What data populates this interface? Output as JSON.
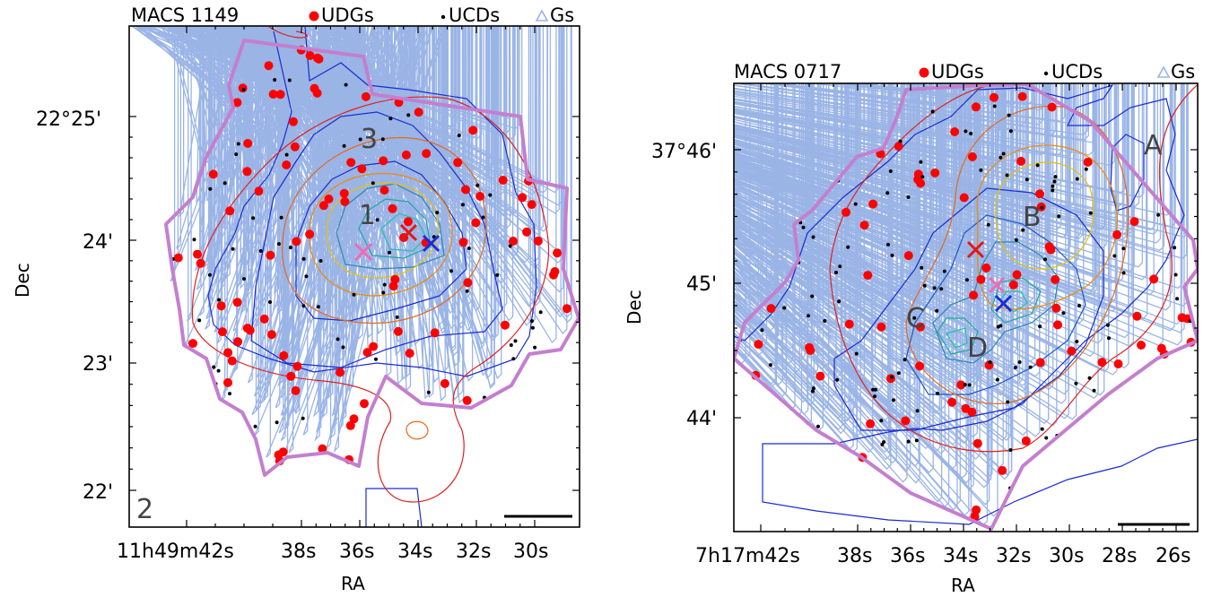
{
  "chart_data": [
    {
      "type": "scatter",
      "title": "MACS 1149",
      "xlabel": "RA",
      "ylabel": "Dec",
      "x_ticks": [
        "11h49m42s",
        "38s",
        "36s",
        "34s",
        "32s",
        "30s"
      ],
      "y_ticks": [
        "22°25'",
        "24'",
        "23'",
        "22'"
      ],
      "legend": [
        "UDGs",
        "UCDs",
        "Gs"
      ],
      "panel_label": "2",
      "region_labels": [
        "1",
        "3"
      ],
      "colors": {
        "udg": "#ff0000",
        "ucd": "#000000",
        "gs": "#9ab4e6",
        "footprint": "#c47fcf"
      }
    },
    {
      "type": "scatter",
      "title": "MACS 0717",
      "xlabel": "RA",
      "ylabel": "Dec",
      "x_ticks": [
        "7h17m42s",
        "38s",
        "36s",
        "34s",
        "32s",
        "30s",
        "28s",
        "26s"
      ],
      "y_ticks": [
        "37°46'",
        "45'",
        "44'"
      ],
      "legend": [
        "UDGs",
        "UCDs",
        "Gs"
      ],
      "region_labels": [
        "A",
        "B",
        "C",
        "D"
      ],
      "colors": {
        "udg": "#ff0000",
        "ucd": "#000000",
        "gs": "#9ab4e6",
        "footprint": "#c47fcf"
      }
    }
  ]
}
